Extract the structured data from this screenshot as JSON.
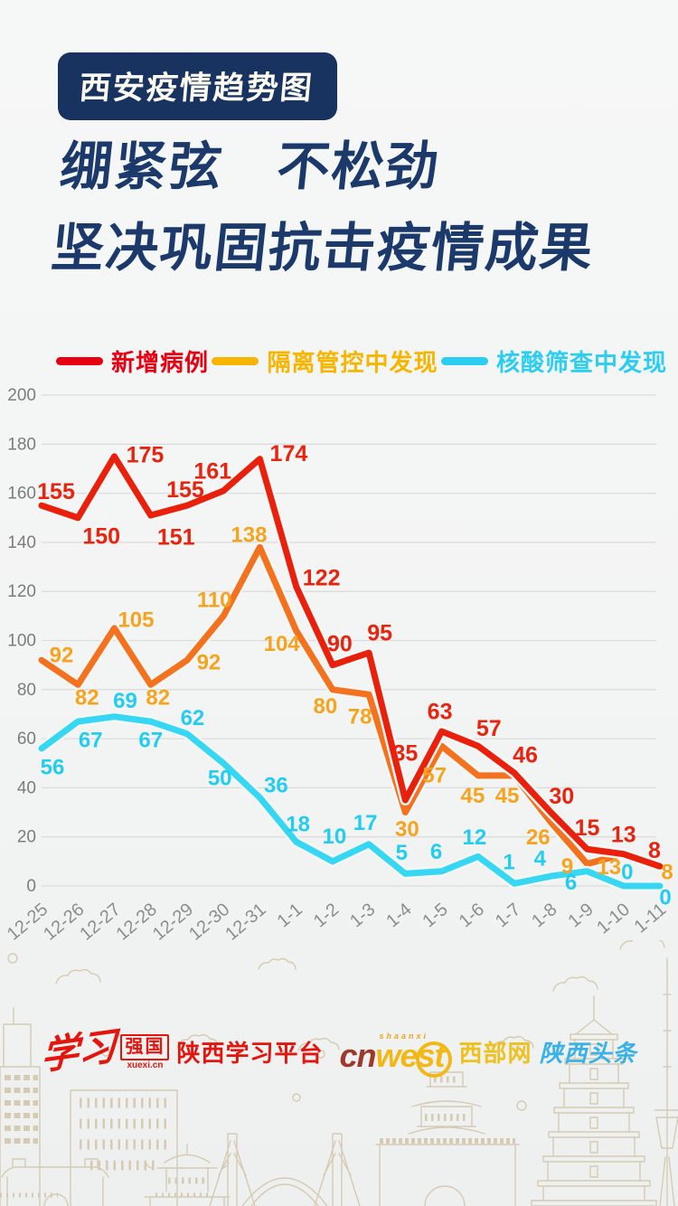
{
  "badge": {
    "label": "西安疫情趋势图"
  },
  "headline": {
    "line1": "绷紧弦　不松劲",
    "line2": "坚决巩固抗击疫情成果",
    "color": "#1b3a6b"
  },
  "legend": {
    "items": [
      {
        "label": "新增病例",
        "color": "#e60012"
      },
      {
        "label": "隔离管控中发现",
        "color": "#f8b500"
      },
      {
        "label": "核酸筛查中发现",
        "color": "#2bcdf0"
      }
    ]
  },
  "chart_data": {
    "type": "line",
    "title": "西安疫情趋势图",
    "categories": [
      "12-25",
      "12-26",
      "12-27",
      "12-28",
      "12-29",
      "12-30",
      "12-31",
      "1-1",
      "1-2",
      "1-3",
      "1-4",
      "1-5",
      "1-6",
      "1-7",
      "1-8",
      "1-9",
      "1-10",
      "1-11"
    ],
    "series": [
      {
        "name": "新增病例",
        "color": "#e8200c",
        "label_color": "#e8230e",
        "values": [
          155,
          150,
          175,
          151,
          155,
          161,
          174,
          122,
          90,
          95,
          35,
          63,
          57,
          46,
          30,
          15,
          13,
          8
        ]
      },
      {
        "name": "隔离管控中发现",
        "color": "#f4711d",
        "label_color": "#f6a41e",
        "values": [
          92,
          82,
          105,
          82,
          92,
          110,
          138,
          104,
          80,
          78,
          30,
          57,
          45,
          45,
          26,
          9,
          13,
          8
        ]
      },
      {
        "name": "核酸筛查中发现",
        "color": "#35d7f2",
        "label_color": "#22cdf0",
        "values": [
          56,
          67,
          69,
          67,
          62,
          50,
          36,
          18,
          10,
          17,
          5,
          6,
          12,
          1,
          4,
          6,
          0,
          0
        ]
      }
    ],
    "ylim": [
      0,
      200
    ],
    "yticks": [
      0,
      20,
      40,
      60,
      80,
      100,
      120,
      140,
      160,
      180,
      200
    ],
    "grid": true,
    "legend_position": "top",
    "xlabel": "",
    "ylabel": ""
  },
  "footer": {
    "xuexi_script": "学习",
    "qiangguo": "强国",
    "domain": "xuexi.cn",
    "platform": "陕西学习平台",
    "cnwest_cn": "cn",
    "cnwest_west": "west",
    "cnwest_sub": "shaanxi",
    "xibuwang": "西部网",
    "toutiao": "陕西头条"
  },
  "colors": {
    "accent_navy": "#18335f",
    "red": "#e60012",
    "yellow": "#f8b500",
    "cyan": "#2bcdf0",
    "background": "#f4f5f5"
  }
}
